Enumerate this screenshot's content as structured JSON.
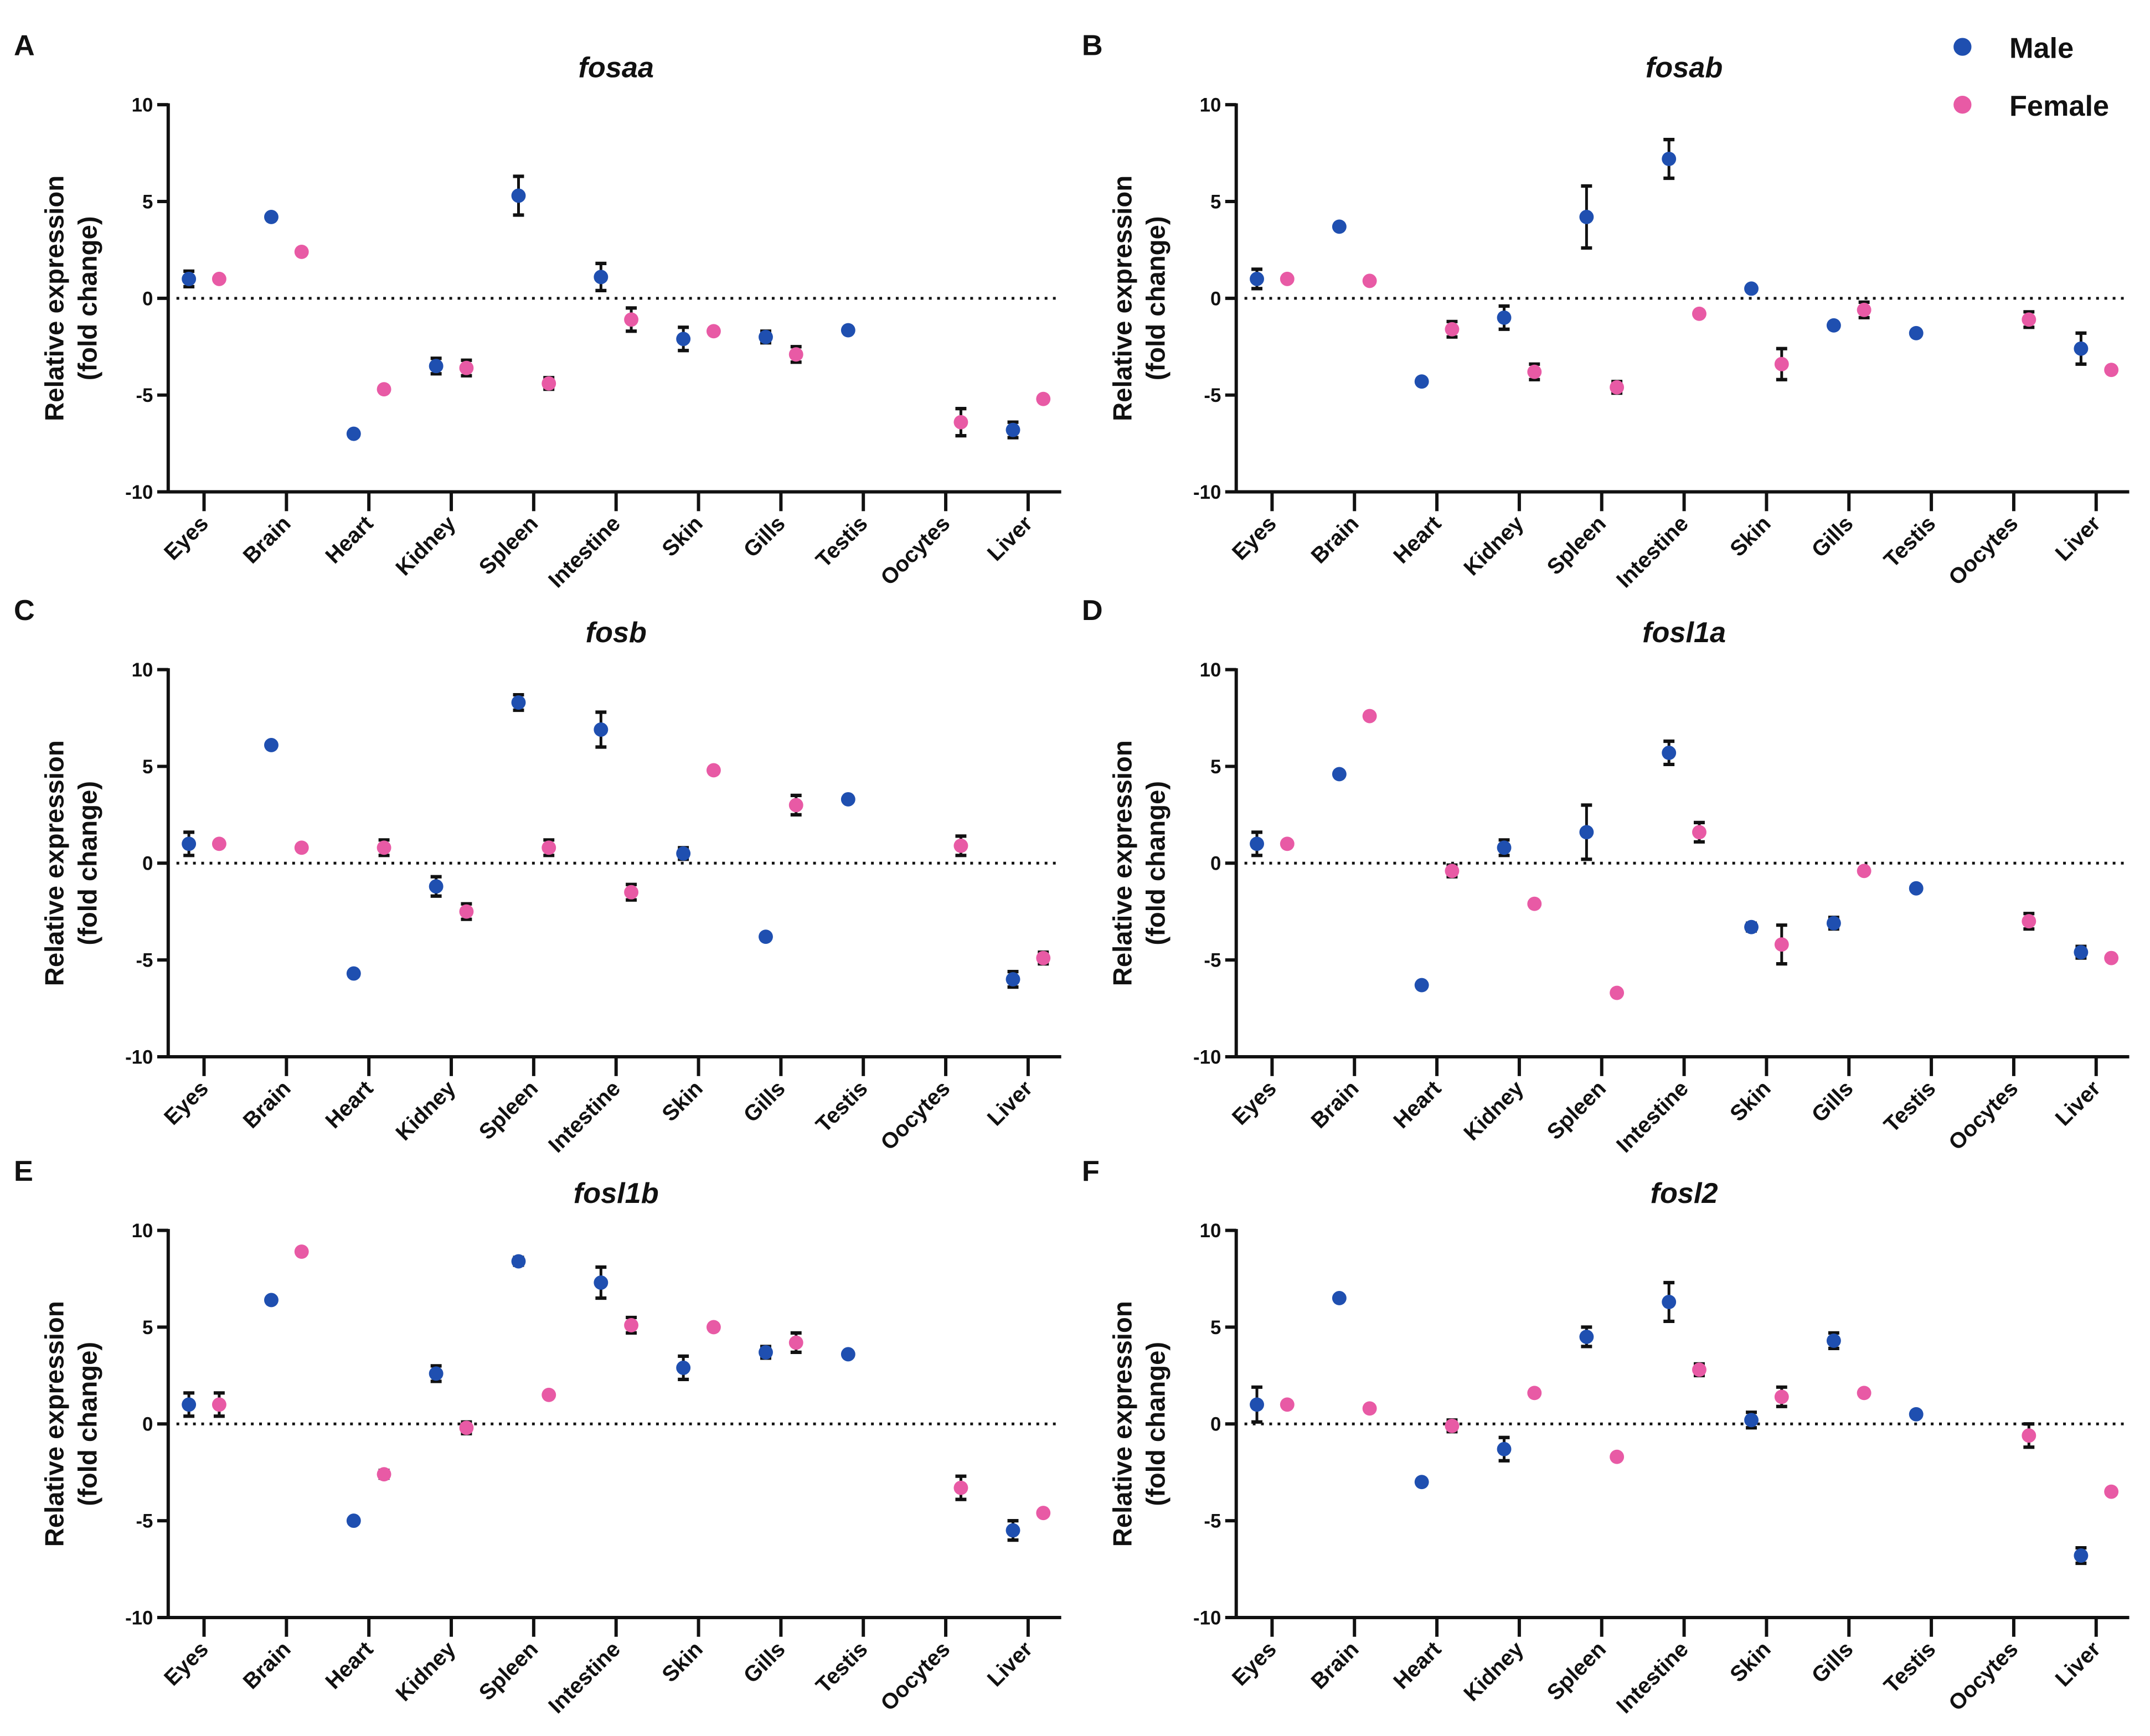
{
  "legend": {
    "male": "Male",
    "female": "Female",
    "position": "top-right"
  },
  "colors": {
    "male": "#1f4fb0",
    "female": "#e85aa5",
    "axis": "#111111"
  },
  "chart_data": [
    {
      "type": "scatter",
      "panel": "A",
      "title": "fosaa",
      "ylabel": [
        "Relative expression",
        "(fold change)"
      ],
      "ylim": [
        -10,
        10
      ],
      "yticks": [
        "10",
        "5",
        "0",
        "-5",
        "-10"
      ],
      "categories": [
        "Eyes",
        "Brain",
        "Heart",
        "Kidney",
        "Spleen",
        "Intestine",
        "Skin",
        "Gills",
        "Testis",
        "Oocytes",
        "Liver"
      ],
      "series": [
        {
          "name": "Male",
          "values": [
            1.0,
            4.2,
            -7.0,
            -3.5,
            5.3,
            1.1,
            -2.1,
            -2.0,
            -1.65,
            null,
            -6.8
          ],
          "errors": [
            0.4,
            0,
            0,
            0.4,
            1.0,
            0.7,
            0.6,
            0.3,
            0,
            0,
            0.4
          ]
        },
        {
          "name": "Female",
          "values": [
            1.0,
            2.4,
            -4.7,
            -3.6,
            -4.4,
            -1.1,
            -1.7,
            -2.9,
            null,
            -6.4,
            -5.2
          ],
          "errors": [
            0,
            0,
            0,
            0.4,
            0.3,
            0.6,
            0,
            0.4,
            0,
            0.7,
            0
          ]
        }
      ]
    },
    {
      "type": "scatter",
      "panel": "B",
      "title": "fosab",
      "ylabel": [
        "Relative expression",
        "(fold change)"
      ],
      "ylim": [
        -10,
        10
      ],
      "yticks": [
        "10",
        "5",
        "0",
        "-5",
        "-10"
      ],
      "categories": [
        "Eyes",
        "Brain",
        "Heart",
        "Kidney",
        "Spleen",
        "Intestine",
        "Skin",
        "Gills",
        "Testis",
        "Oocytes",
        "Liver"
      ],
      "series": [
        {
          "name": "Male",
          "values": [
            1.0,
            3.7,
            -4.3,
            -1.0,
            4.2,
            7.2,
            0.5,
            -1.4,
            -1.8,
            null,
            -2.6
          ],
          "errors": [
            0.5,
            0,
            0,
            0.6,
            1.6,
            1.0,
            0,
            0,
            0,
            0,
            0.8
          ]
        },
        {
          "name": "Female",
          "values": [
            1.0,
            0.9,
            -1.6,
            -3.8,
            -4.6,
            -0.8,
            -3.4,
            -0.6,
            null,
            -1.1,
            -3.7
          ],
          "errors": [
            0,
            0,
            0.4,
            0.4,
            0.3,
            0,
            0.8,
            0.4,
            0,
            0.4,
            0
          ]
        }
      ]
    },
    {
      "type": "scatter",
      "panel": "C",
      "title": "fosb",
      "ylabel": [
        "Relative expression",
        "(fold change)"
      ],
      "ylim": [
        -10,
        10
      ],
      "yticks": [
        "10",
        "5",
        "0",
        "-5",
        "-10"
      ],
      "categories": [
        "Eyes",
        "Brain",
        "Heart",
        "Kidney",
        "Spleen",
        "Intestine",
        "Skin",
        "Gills",
        "Testis",
        "Oocytes",
        "Liver"
      ],
      "series": [
        {
          "name": "Male",
          "values": [
            1.0,
            6.1,
            -5.7,
            -1.2,
            8.3,
            6.9,
            0.5,
            -3.8,
            3.3,
            null,
            -6.0
          ],
          "errors": [
            0.6,
            0,
            0,
            0.5,
            0.4,
            0.9,
            0.3,
            0,
            0,
            0,
            0.4
          ]
        },
        {
          "name": "Female",
          "values": [
            1.0,
            0.8,
            0.8,
            -2.5,
            0.8,
            -1.5,
            4.8,
            3.0,
            null,
            0.9,
            -4.9
          ],
          "errors": [
            0,
            0,
            0.4,
            0.4,
            0.4,
            0.4,
            0,
            0.5,
            0,
            0.5,
            0.3
          ]
        }
      ]
    },
    {
      "type": "scatter",
      "panel": "D",
      "title": "fosl1a",
      "ylabel": [
        "Relative expression",
        "(fold change)"
      ],
      "ylim": [
        -10,
        10
      ],
      "yticks": [
        "10",
        "5",
        "0",
        "-5",
        "-10"
      ],
      "categories": [
        "Eyes",
        "Brain",
        "Heart",
        "Kidney",
        "Spleen",
        "Intestine",
        "Skin",
        "Gills",
        "Testis",
        "Oocytes",
        "Liver"
      ],
      "series": [
        {
          "name": "Male",
          "values": [
            1.0,
            4.6,
            -6.3,
            0.8,
            1.6,
            5.7,
            -3.3,
            -3.1,
            -1.3,
            null,
            -4.6
          ],
          "errors": [
            0.6,
            0,
            0,
            0.4,
            1.4,
            0.6,
            0.2,
            0.3,
            0,
            0,
            0.3
          ]
        },
        {
          "name": "Female",
          "values": [
            1.0,
            7.6,
            -0.4,
            -2.1,
            -6.7,
            1.6,
            -4.2,
            -0.4,
            null,
            -3.0,
            -4.9
          ],
          "errors": [
            0,
            0,
            0.3,
            0,
            0,
            0.5,
            1.0,
            0,
            0,
            0.4,
            0
          ]
        }
      ]
    },
    {
      "type": "scatter",
      "panel": "E",
      "title": "fosl1b",
      "ylabel": [
        "Relative expression",
        "(fold change)"
      ],
      "ylim": [
        -10,
        10
      ],
      "yticks": [
        "10",
        "5",
        "0",
        "-5",
        "-10"
      ],
      "categories": [
        "Eyes",
        "Brain",
        "Heart",
        "Kidney",
        "Spleen",
        "Intestine",
        "Skin",
        "Gills",
        "Testis",
        "Oocytes",
        "Liver"
      ],
      "series": [
        {
          "name": "Male",
          "values": [
            1.0,
            6.4,
            -5.0,
            2.6,
            8.4,
            7.3,
            2.9,
            3.7,
            3.6,
            null,
            -5.5
          ],
          "errors": [
            0.6,
            0,
            0,
            0.4,
            0.2,
            0.8,
            0.6,
            0.3,
            0,
            0,
            0.5
          ]
        },
        {
          "name": "Female",
          "values": [
            1.0,
            8.9,
            -2.6,
            -0.2,
            1.5,
            5.1,
            5.0,
            4.2,
            null,
            -3.3,
            -4.6
          ],
          "errors": [
            0.6,
            0,
            0.2,
            0.3,
            0,
            0.4,
            0,
            0.5,
            0,
            0.6,
            0
          ]
        }
      ]
    },
    {
      "type": "scatter",
      "panel": "F",
      "title": "fosl2",
      "ylabel": [
        "Relative expression",
        "(fold change)"
      ],
      "ylim": [
        -10,
        10
      ],
      "yticks": [
        "10",
        "5",
        "0",
        "-5",
        "-10"
      ],
      "categories": [
        "Eyes",
        "Brain",
        "Heart",
        "Kidney",
        "Spleen",
        "Intestine",
        "Skin",
        "Gills",
        "Testis",
        "Oocytes",
        "Liver"
      ],
      "series": [
        {
          "name": "Male",
          "values": [
            1.0,
            6.5,
            -3.0,
            -1.3,
            4.5,
            6.3,
            0.2,
            4.3,
            0.5,
            null,
            -6.8
          ],
          "errors": [
            0.9,
            0,
            0,
            0.6,
            0.5,
            1.0,
            0.4,
            0.4,
            0,
            0,
            0.4
          ]
        },
        {
          "name": "Female",
          "values": [
            1.0,
            0.8,
            -0.1,
            1.6,
            -1.7,
            2.8,
            1.4,
            1.6,
            null,
            -0.6,
            -3.5
          ],
          "errors": [
            0,
            0,
            0.3,
            0,
            0,
            0.3,
            0.5,
            0,
            0,
            0.6,
            0
          ]
        }
      ]
    }
  ]
}
